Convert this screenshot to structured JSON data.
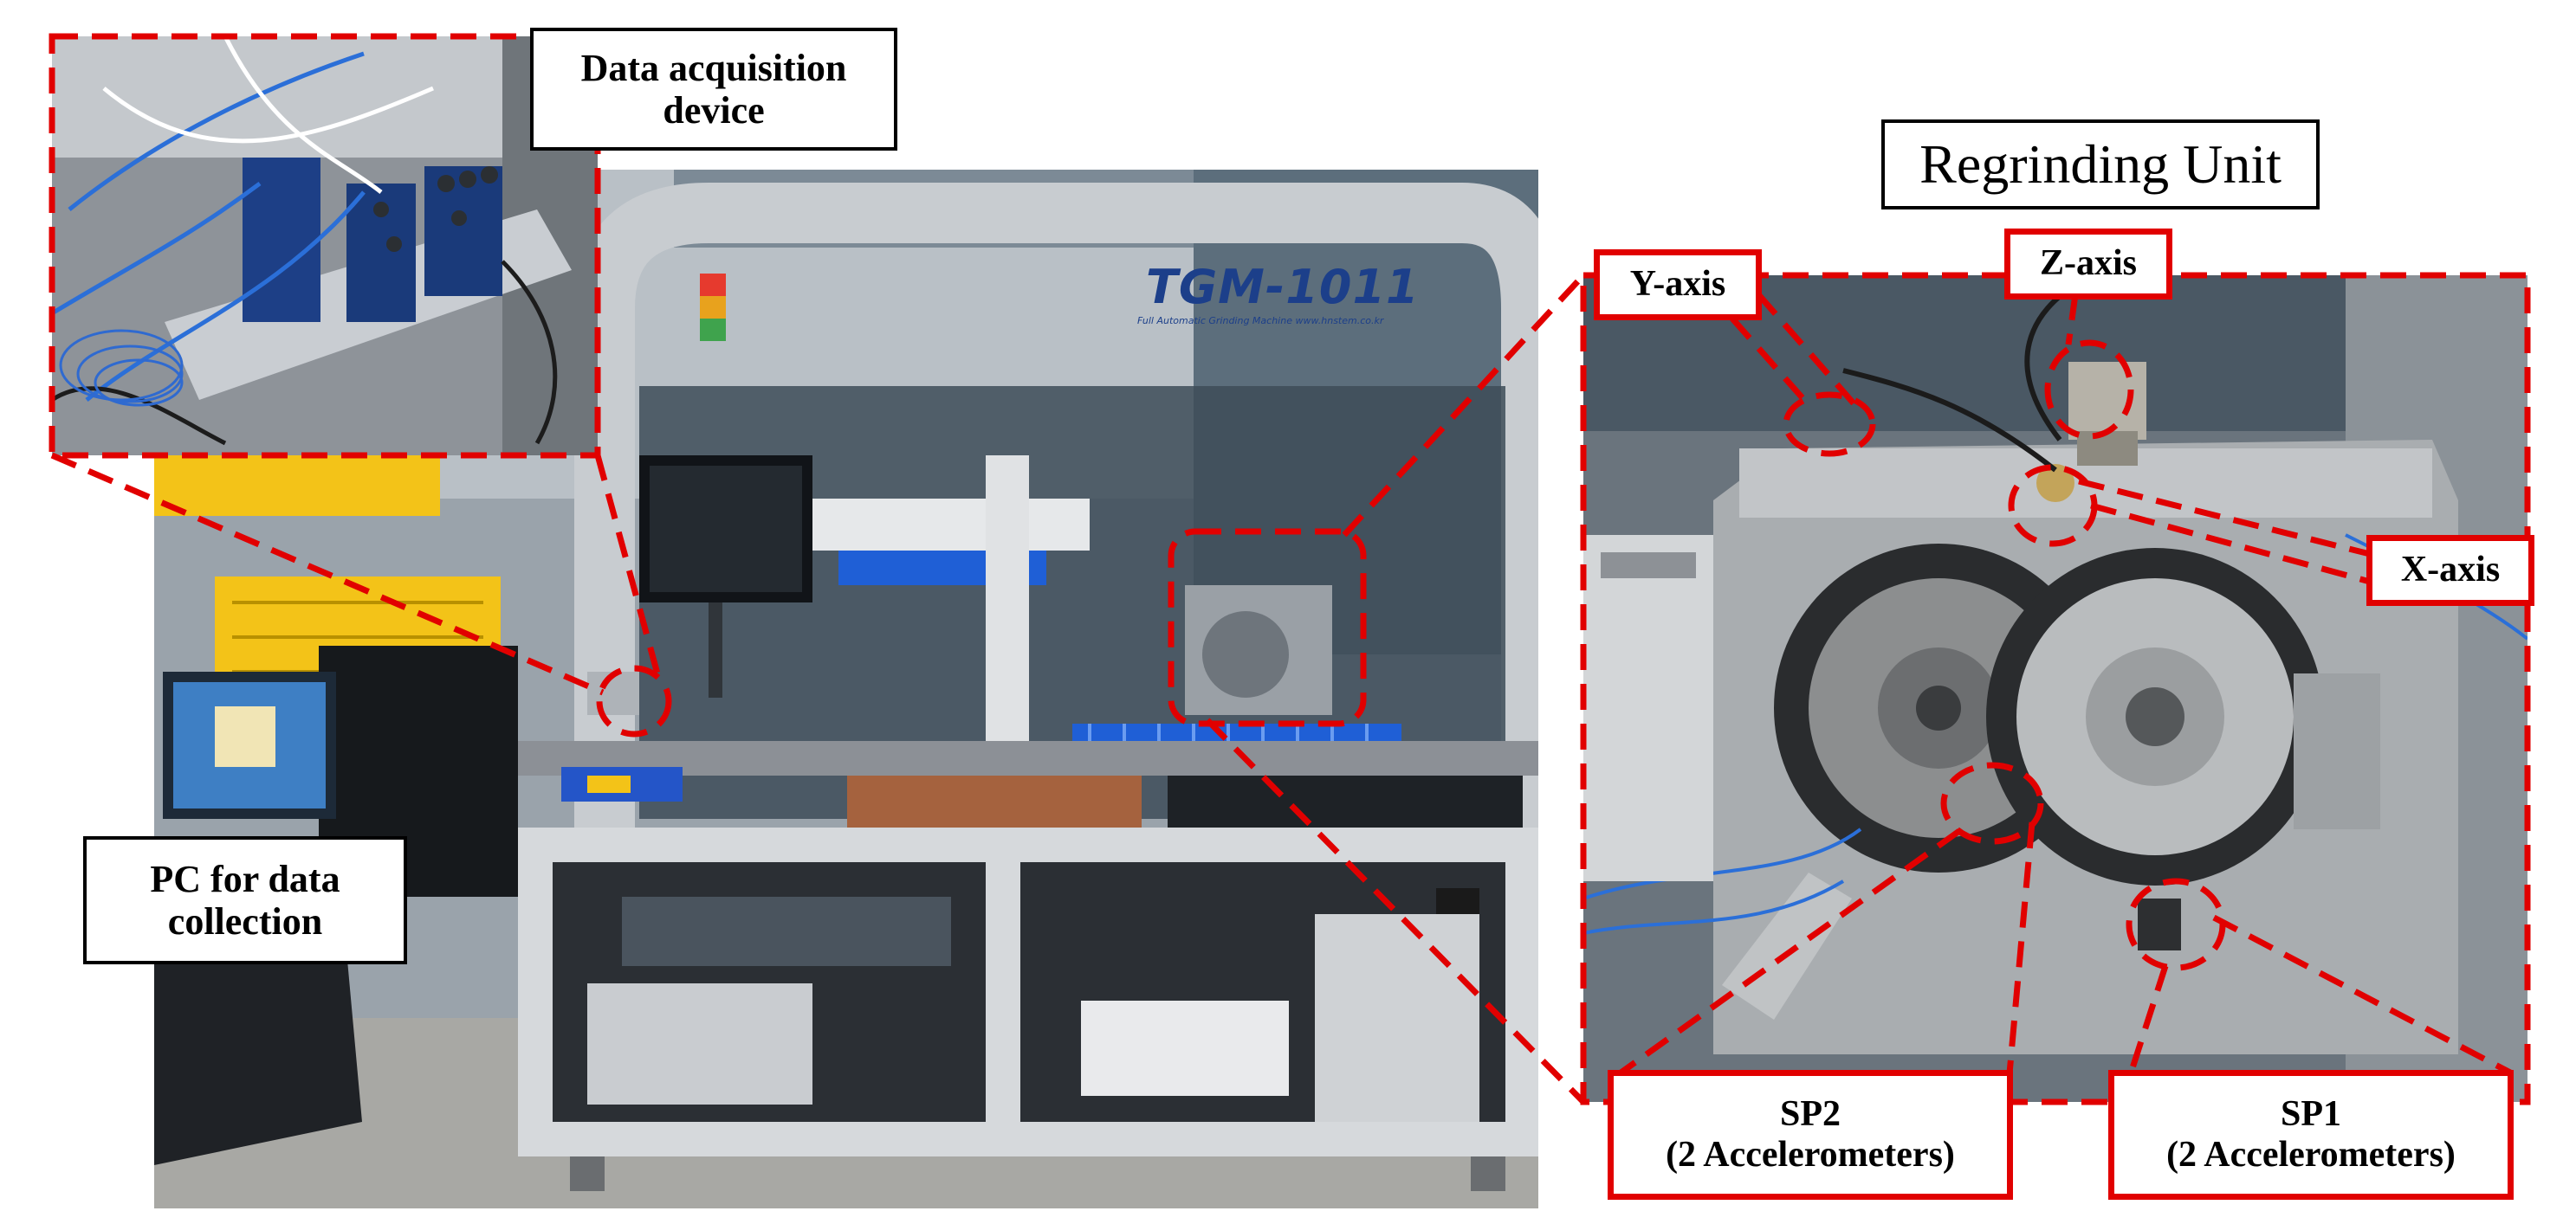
{
  "labels": {
    "daq": "Data acquisition device",
    "pc": "PC for data collection",
    "unit_title": "Regrinding Unit",
    "y_axis": "Y-axis",
    "z_axis": "Z-axis",
    "x_axis": "X-axis",
    "sp2_name": "SP2",
    "sp2_desc": "(2 Accelerometers)",
    "sp1_name": "SP1",
    "sp1_desc": "(2 Accelerometers)"
  },
  "machine": {
    "model": "TGM-1011",
    "subtitle": "Full Automatic Grinding Machine www.hnstem.co.kr"
  },
  "colors": {
    "callout_red": "#e10000",
    "machine_body": "#d6d9dc",
    "machine_frame": "#c8ccd0",
    "conveyor_blue": "#1f5fd6",
    "cable_blue": "#2b6fd8",
    "crate_yellow": "#f3c318"
  }
}
